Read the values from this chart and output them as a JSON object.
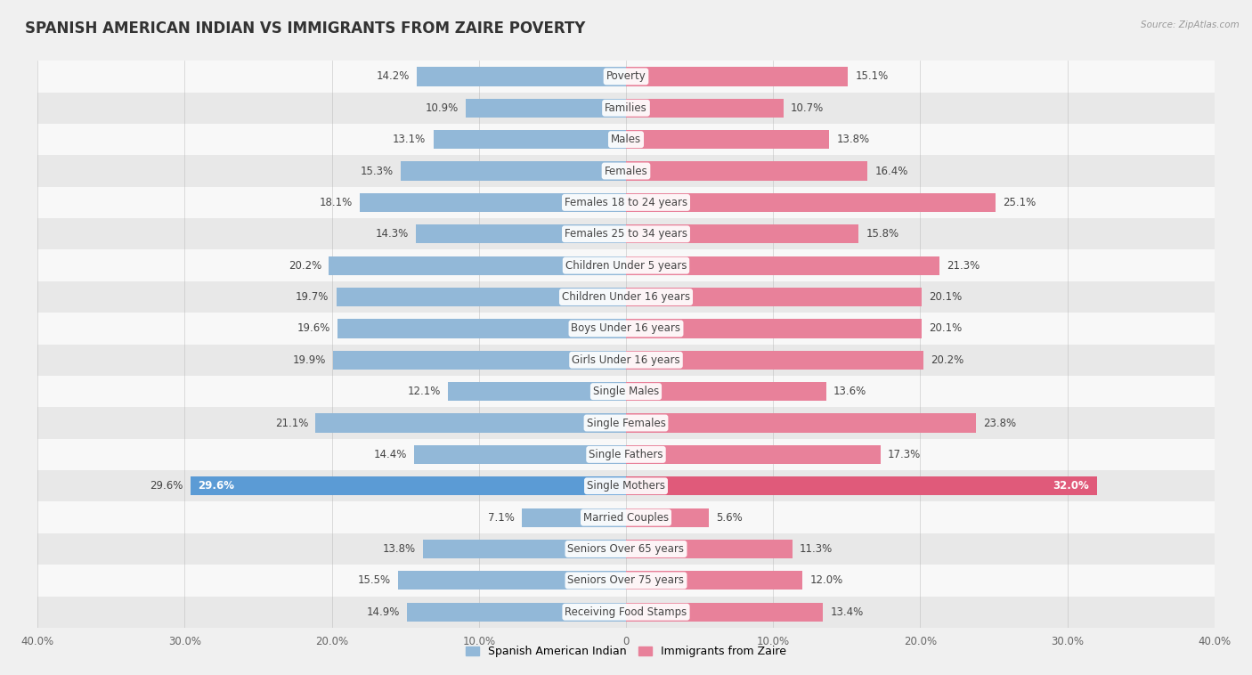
{
  "title": "SPANISH AMERICAN INDIAN VS IMMIGRANTS FROM ZAIRE POVERTY",
  "source": "Source: ZipAtlas.com",
  "categories": [
    "Poverty",
    "Families",
    "Males",
    "Females",
    "Females 18 to 24 years",
    "Females 25 to 34 years",
    "Children Under 5 years",
    "Children Under 16 years",
    "Boys Under 16 years",
    "Girls Under 16 years",
    "Single Males",
    "Single Females",
    "Single Fathers",
    "Single Mothers",
    "Married Couples",
    "Seniors Over 65 years",
    "Seniors Over 75 years",
    "Receiving Food Stamps"
  ],
  "left_values": [
    14.2,
    10.9,
    13.1,
    15.3,
    18.1,
    14.3,
    20.2,
    19.7,
    19.6,
    19.9,
    12.1,
    21.1,
    14.4,
    29.6,
    7.1,
    13.8,
    15.5,
    14.9
  ],
  "right_values": [
    15.1,
    10.7,
    13.8,
    16.4,
    25.1,
    15.8,
    21.3,
    20.1,
    20.1,
    20.2,
    13.6,
    23.8,
    17.3,
    32.0,
    5.6,
    11.3,
    12.0,
    13.4
  ],
  "left_color": "#92b8d8",
  "right_color": "#e8819a",
  "left_label": "Spanish American Indian",
  "right_label": "Immigrants from Zaire",
  "xlim": 40.0,
  "background_color": "#f0f0f0",
  "row_colors": [
    "#f8f8f8",
    "#e8e8e8"
  ],
  "title_fontsize": 12,
  "label_fontsize": 8.5,
  "value_fontsize": 8.5,
  "bar_height": 0.6,
  "category_label_color": "#444444",
  "value_label_color": "#444444",
  "highlight_left_color": "#5b9bd5",
  "highlight_right_color": "#e05a7a"
}
